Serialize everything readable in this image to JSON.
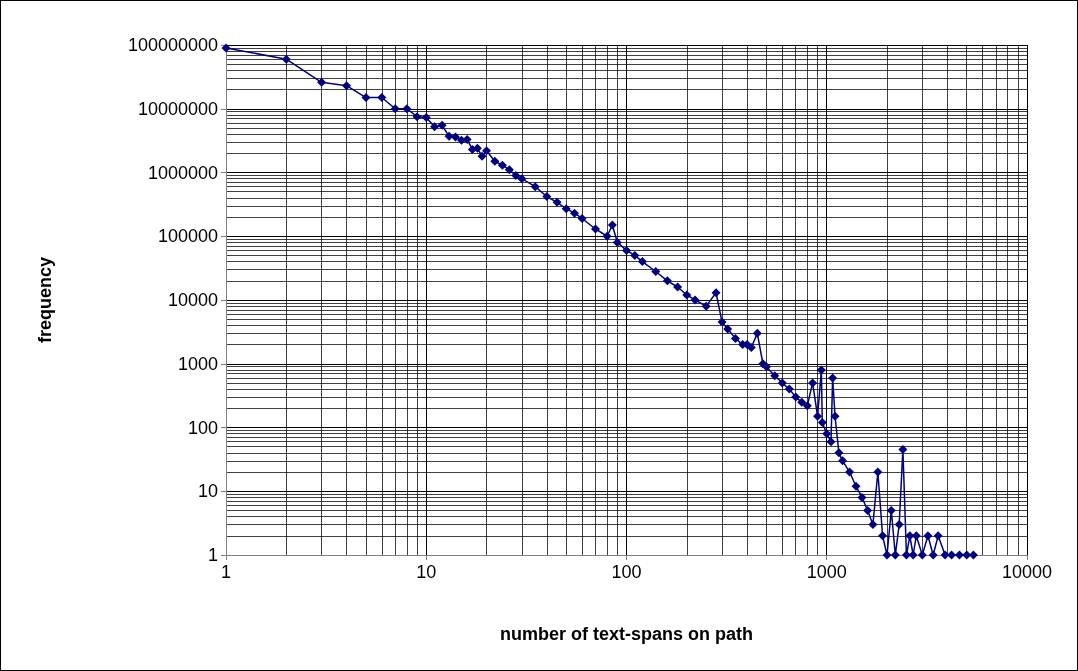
{
  "chart_data": {
    "type": "line",
    "xlabel": "number of text-spans on path",
    "ylabel": "frequency",
    "log": "xy",
    "grid": true,
    "marker": "diamond",
    "line_style": "solid",
    "xlim": [
      1,
      10000
    ],
    "xticks": [
      1,
      10,
      100,
      1000,
      10000
    ],
    "ylim": [
      1,
      100000000
    ],
    "yticks": [
      1,
      10,
      100,
      1000,
      10000,
      100000,
      1000000,
      10000000,
      100000000
    ],
    "series": [
      {
        "color": "#000080",
        "x": [
          1,
          2,
          3,
          4,
          5,
          6,
          7,
          8,
          9,
          10,
          11,
          12,
          13,
          14,
          15,
          16,
          17,
          18,
          19,
          20,
          22,
          24,
          26,
          28,
          30,
          35,
          40,
          45,
          50,
          55,
          60,
          70,
          80,
          85,
          90,
          100,
          110,
          120,
          140,
          160,
          180,
          200,
          220,
          250,
          280,
          300,
          320,
          350,
          380,
          400,
          420,
          450,
          480,
          500,
          550,
          600,
          650,
          700,
          750,
          800,
          850,
          900,
          940,
          950,
          1000,
          1050,
          1070,
          1100,
          1150,
          1200,
          1300,
          1400,
          1500,
          1600,
          1700,
          1800,
          1900,
          2000,
          2100,
          2200,
          2300,
          2400,
          2500,
          2600,
          2700,
          2800,
          3000,
          3200,
          3400,
          3600,
          3900,
          4200,
          4600,
          5000,
          5400
        ],
        "values": [
          90000000,
          60000000,
          26000000,
          23000000,
          15000000,
          15000000,
          10000000,
          10000000,
          7500000,
          7300000,
          5200000,
          5500000,
          3700000,
          3600000,
          3200000,
          3300000,
          2300000,
          2400000,
          1800000,
          2200000,
          1500000,
          1300000,
          1100000,
          900000,
          800000,
          600000,
          420000,
          340000,
          270000,
          230000,
          190000,
          130000,
          100000,
          150000,
          80000,
          60000,
          50000,
          40000,
          28000,
          20000,
          16000,
          12000,
          10000,
          8000,
          13000,
          4500,
          3500,
          2500,
          2000,
          2000,
          1800,
          3000,
          1000,
          900,
          650,
          500,
          400,
          300,
          250,
          220,
          500,
          150,
          800,
          120,
          80,
          60,
          600,
          150,
          40,
          30,
          20,
          12,
          8,
          5,
          3,
          20,
          2,
          1,
          5,
          1,
          3,
          45,
          1,
          2,
          1,
          2,
          1,
          2,
          1,
          2,
          1,
          1,
          1,
          1,
          1
        ]
      }
    ]
  }
}
